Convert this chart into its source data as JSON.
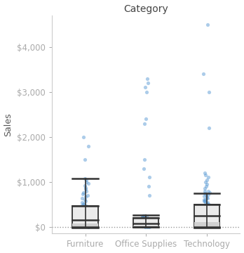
{
  "title": "Category",
  "ylabel": "Sales",
  "categories": [
    "Furniture",
    "Office Supplies",
    "Technology"
  ],
  "yticks": [
    0,
    1000,
    2000,
    3000,
    4000
  ],
  "ytick_labels": [
    "$0",
    "$1,000",
    "$2,000",
    "$3,000",
    "$4,000"
  ],
  "ylim": [
    -150,
    4700
  ],
  "background_color": "#ffffff",
  "plot_bg_color": "#ffffff",
  "dot_color": "#5b9bd5",
  "dot_alpha": 0.5,
  "dot_size": 14,
  "box_facecolor": "#e0e0e0",
  "box_edgecolor": "#333333",
  "whisker_color": "#333333",
  "median_color": "#333333",
  "title_color": "#444444",
  "ytick_label_color": "#c0392b",
  "ylabel_color": "#555555",
  "xtick_label_color": "#3b78b5",
  "boxes": [
    {
      "cat": "Furniture",
      "x": 0,
      "q0": -20,
      "q1_inner": 0,
      "q1": 80,
      "q2": 150,
      "q3": 460,
      "q3_inner": 500,
      "whisker_high": 1080
    },
    {
      "cat": "Office Supplies",
      "x": 1,
      "q0": -10,
      "q1_inner": 0,
      "q1": 30,
      "q2": 80,
      "q3": 200,
      "q3_inner": 240,
      "whisker_high": 260
    },
    {
      "cat": "Technology",
      "x": 2,
      "q0": -15,
      "q1_inner": 0,
      "q1": 100,
      "q2": 250,
      "q3": 500,
      "q3_inner": 550,
      "whisker_high": 750
    }
  ],
  "jitter_data": {
    "Furniture": [
      5,
      8,
      10,
      12,
      15,
      18,
      20,
      22,
      25,
      28,
      30,
      35,
      40,
      45,
      50,
      55,
      60,
      65,
      70,
      75,
      80,
      85,
      90,
      95,
      100,
      110,
      120,
      130,
      140,
      150,
      160,
      170,
      180,
      190,
      200,
      210,
      220,
      230,
      240,
      250,
      260,
      270,
      280,
      290,
      300,
      320,
      340,
      360,
      380,
      400,
      420,
      440,
      460,
      480,
      500,
      520,
      550,
      580,
      610,
      640,
      670,
      700,
      730,
      760,
      800,
      840,
      880,
      920,
      960,
      1000,
      1040,
      1080,
      1500,
      1800,
      2000,
      3,
      6,
      9,
      13,
      17,
      21,
      26,
      32,
      38,
      44,
      52,
      58,
      66,
      72,
      78
    ],
    "Office Supplies": [
      2,
      4,
      6,
      8,
      10,
      12,
      14,
      16,
      18,
      20,
      22,
      24,
      26,
      28,
      30,
      32,
      34,
      36,
      38,
      40,
      42,
      44,
      46,
      48,
      50,
      55,
      60,
      65,
      70,
      75,
      80,
      85,
      90,
      95,
      100,
      110,
      120,
      130,
      140,
      150,
      160,
      170,
      180,
      190,
      200,
      210,
      220,
      230,
      240,
      250,
      700,
      900,
      1100,
      1300,
      1500,
      2300,
      2400,
      3000,
      3100,
      3200,
      3300,
      3,
      5,
      7,
      9,
      11,
      13,
      15,
      17,
      19,
      21,
      23,
      25,
      27,
      29,
      31,
      33,
      35,
      37,
      39,
      41,
      43,
      45,
      47,
      49,
      51,
      53,
      55,
      57,
      60,
      63,
      66,
      70,
      75,
      80,
      85,
      90
    ],
    "Technology": [
      20,
      40,
      60,
      80,
      100,
      120,
      140,
      160,
      180,
      200,
      220,
      240,
      260,
      280,
      300,
      330,
      360,
      390,
      420,
      450,
      480,
      510,
      540,
      570,
      600,
      640,
      680,
      720,
      760,
      800,
      850,
      900,
      950,
      1000,
      1050,
      1100,
      1150,
      1200,
      2200,
      3000,
      3400,
      4500,
      10,
      30,
      50,
      70,
      90,
      110,
      130,
      150,
      170,
      190,
      210,
      230,
      250,
      270,
      290,
      310,
      340,
      370,
      400,
      430,
      460,
      490,
      520,
      550,
      580,
      610,
      650,
      700,
      750,
      800
    ]
  }
}
